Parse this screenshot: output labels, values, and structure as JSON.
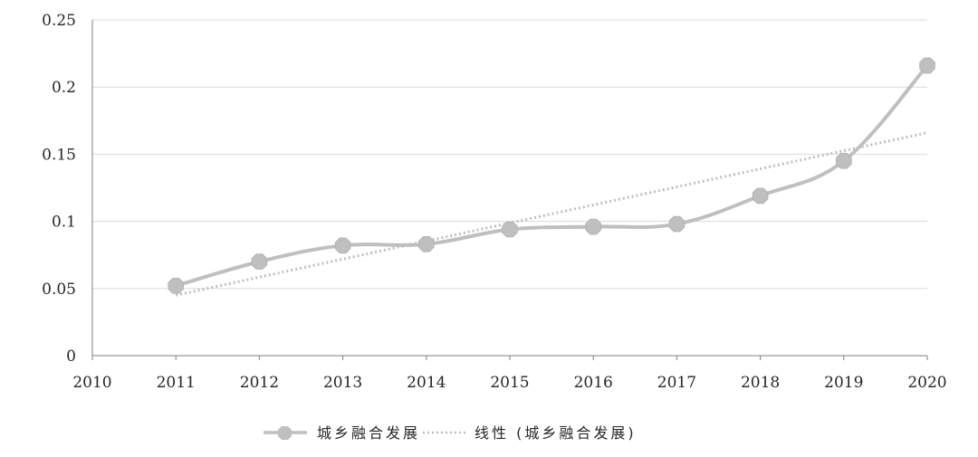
{
  "chart_data": {
    "type": "line",
    "title": "",
    "xlabel": "",
    "ylabel": "",
    "xlim": [
      2010,
      2020
    ],
    "ylim": [
      0,
      0.25
    ],
    "x_ticks": [
      2010,
      2011,
      2012,
      2013,
      2014,
      2015,
      2016,
      2017,
      2018,
      2019,
      2020
    ],
    "x_tick_labels": [
      "2010",
      "2011",
      "2012",
      "2013",
      "2014",
      "2015",
      "2016",
      "2017",
      "2018",
      "2019",
      "2020"
    ],
    "y_ticks": [
      0,
      0.05,
      0.1,
      0.15,
      0.2,
      0.25
    ],
    "y_tick_labels": [
      "0",
      "0.05",
      "0.1",
      "0.15",
      "0.2",
      "0.25"
    ],
    "grid": "horizontal",
    "legend_position": "bottom",
    "series": [
      {
        "name": "城乡融合发展",
        "color": "#bfbfbf",
        "marker": "octagon",
        "x": [
          2011,
          2012,
          2013,
          2014,
          2015,
          2016,
          2017,
          2018,
          2019,
          2020
        ],
        "values": [
          0.052,
          0.07,
          0.082,
          0.083,
          0.094,
          0.096,
          0.098,
          0.119,
          0.145,
          0.216
        ]
      },
      {
        "name": "线性 (城乡融合发展)",
        "color": "#bfbfbf",
        "style": "dotted",
        "x": [
          2011,
          2020
        ],
        "values": [
          0.045,
          0.166
        ]
      }
    ]
  }
}
